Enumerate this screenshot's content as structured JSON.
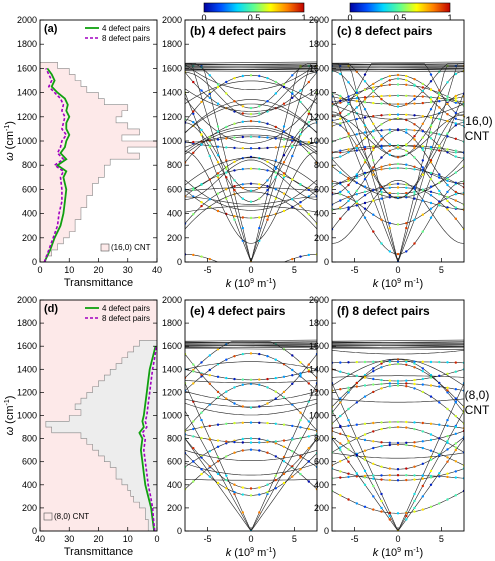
{
  "colorbar": {
    "tick_labels": [
      "0",
      "0.5",
      "1"
    ],
    "stops": [
      "#0000a0",
      "#0050ff",
      "#00d8ff",
      "#60ff90",
      "#ffff00",
      "#ff8000",
      "#c00000"
    ]
  },
  "colors": {
    "series_4": "#10a010",
    "series_8": "#a000c0",
    "fill_top": "#fde9e9",
    "fill_bottom_left": "#ededed",
    "fill_bottom_right": "#fde9e9"
  },
  "side_labels": {
    "top": [
      "(16,0)",
      "CNT"
    ],
    "bottom": [
      "(8,0)",
      "CNT"
    ]
  },
  "chart_data": [
    {
      "id": "a",
      "type": "line",
      "panel_label": "(a)",
      "xlabel": "Transmittance",
      "ylabel_main": "ω",
      "ylabel_unit": "(cm",
      "ylabel_sup": "-1",
      "ylabel_tail": ")",
      "xlim": [
        0,
        40
      ],
      "ylim": [
        0,
        2000
      ],
      "x_ticks": [
        "0",
        "10",
        "20",
        "30",
        "40"
      ],
      "y_ticks": [
        "0",
        "200",
        "400",
        "600",
        "800",
        "1000",
        "1200",
        "1400",
        "1600",
        "1800",
        "2000"
      ],
      "legend": [
        "4 defect pairs",
        "8 defect pairs"
      ],
      "area_label": "(16,0) CNT",
      "series": [
        {
          "name": "4 defect pairs",
          "w": [
            0,
            100,
            200,
            300,
            400,
            500,
            600,
            700,
            750,
            800,
            850,
            900,
            950,
            1000,
            1050,
            1100,
            1150,
            1200,
            1250,
            1300,
            1350,
            1400,
            1450,
            1500,
            1550,
            1600
          ],
          "t": [
            1.5,
            3.5,
            5,
            7,
            8,
            8.5,
            9,
            8,
            9,
            6,
            9,
            7,
            8.5,
            9,
            10,
            9,
            9,
            10,
            9,
            9.5,
            8.5,
            6,
            4,
            5,
            4,
            2.5
          ]
        },
        {
          "name": "8 defect pairs",
          "w": [
            0,
            100,
            200,
            300,
            400,
            500,
            600,
            700,
            750,
            800,
            850,
            900,
            950,
            1000,
            1050,
            1100,
            1150,
            1200,
            1250,
            1300,
            1350,
            1400,
            1450,
            1500,
            1550,
            1600
          ],
          "t": [
            1.5,
            3,
            4.5,
            6,
            6.5,
            7.5,
            7.5,
            7,
            8,
            5,
            8,
            6,
            7,
            7.5,
            9,
            7.5,
            8,
            8.5,
            7.5,
            8,
            7,
            5,
            3,
            4,
            3,
            2
          ]
        }
      ],
      "area": {
        "w": [
          0,
          50,
          100,
          150,
          200,
          250,
          300,
          350,
          400,
          450,
          500,
          550,
          600,
          650,
          700,
          750,
          800,
          850,
          900,
          950,
          1000,
          1050,
          1100,
          1150,
          1200,
          1250,
          1300,
          1350,
          1400,
          1450,
          1500,
          1550,
          1600,
          1650
        ],
        "t": [
          2,
          4,
          6,
          8,
          10,
          12,
          12,
          14,
          14,
          16,
          16,
          18,
          18,
          20,
          22,
          22,
          24,
          34,
          30,
          40,
          28,
          34,
          30,
          26,
          28,
          30,
          22,
          20,
          16,
          14,
          12,
          10,
          6,
          0
        ]
      }
    },
    {
      "id": "d",
      "type": "line",
      "panel_label": "(d)",
      "xlabel": "Transmittance",
      "ylabel_main": "ω",
      "ylabel_unit": "(cm",
      "ylabel_sup": "-1",
      "ylabel_tail": ")",
      "xlim": [
        40,
        0
      ],
      "ylim": [
        0,
        2000
      ],
      "x_ticks": [
        "40",
        "30",
        "20",
        "10",
        "0"
      ],
      "y_ticks": [
        "0",
        "200",
        "400",
        "600",
        "800",
        "1000",
        "1200",
        "1400",
        "1600",
        "1800",
        "2000"
      ],
      "legend": [
        "4 defect pairs",
        "8 defect pairs"
      ],
      "area_label": "(8,0) CNT",
      "series": [
        {
          "name": "4 defect pairs",
          "w": [
            0,
            100,
            200,
            300,
            400,
            500,
            600,
            700,
            800,
            850,
            900,
            950,
            1000,
            1100,
            1200,
            1300,
            1400,
            1500,
            1550,
            1600
          ],
          "t": [
            1,
            1.5,
            2,
            3,
            4,
            4.5,
            5,
            5.5,
            5,
            6,
            4.5,
            5,
            4.5,
            4,
            3.5,
            3,
            2.5,
            1.5,
            1,
            0.5
          ]
        },
        {
          "name": "8 defect pairs",
          "w": [
            0,
            100,
            200,
            300,
            400,
            500,
            600,
            700,
            800,
            850,
            900,
            950,
            1000,
            1100,
            1200,
            1300,
            1400,
            1500,
            1550,
            1600
          ],
          "t": [
            0.8,
            1.2,
            1.5,
            2.2,
            3,
            3.5,
            4,
            4.5,
            4,
            5,
            3.5,
            4,
            3.5,
            3,
            2.5,
            2,
            1.5,
            0.8,
            0.5,
            0.2
          ]
        }
      ],
      "area": {
        "w": [
          0,
          100,
          200,
          250,
          300,
          350,
          400,
          450,
          500,
          550,
          600,
          650,
          700,
          750,
          800,
          850,
          900,
          950,
          1000,
          1050,
          1100,
          1150,
          1200,
          1250,
          1300,
          1350,
          1400,
          1450,
          1500,
          1550,
          1600,
          1650
        ],
        "t": [
          3,
          4,
          6,
          8,
          9,
          10,
          12,
          14,
          14,
          16,
          18,
          20,
          22,
          24,
          26,
          36,
          38,
          30,
          26,
          28,
          26,
          24,
          22,
          20,
          18,
          16,
          14,
          12,
          10,
          8,
          6,
          0
        ]
      }
    },
    {
      "id": "b",
      "type": "scatter",
      "panel_label": "(b) 4 defect pairs",
      "xlabel_main": "k",
      "xlabel_unit": "(10",
      "xlabel_sup": "9",
      "xlabel_tail": " m",
      "xlabel_sup2": "-1",
      "xlabel_end": ")",
      "xlim": [
        -7.6,
        7.6
      ],
      "ylim": [
        0,
        2000
      ],
      "x_ticks": [
        "-5",
        "0",
        "5"
      ],
      "x_tick_values": [
        -5,
        0,
        5
      ],
      "y_ticks": [
        "0",
        "200",
        "400",
        "600",
        "800",
        "1000",
        "1200",
        "1400",
        "1600",
        "1800",
        "2000"
      ],
      "num_branches": 34,
      "colored_fraction": 0.35,
      "kmax": 7.6
    },
    {
      "id": "c",
      "type": "scatter",
      "panel_label": "(c) 8 defect pairs",
      "xlabel_main": "k",
      "xlabel_unit": "(10",
      "xlabel_sup": "9",
      "xlabel_tail": " m",
      "xlabel_sup2": "-1",
      "xlabel_end": ")",
      "xlim": [
        -7.6,
        7.6
      ],
      "ylim": [
        0,
        2000
      ],
      "x_ticks": [
        "-5",
        "0",
        "5"
      ],
      "x_tick_values": [
        -5,
        0,
        5
      ],
      "y_ticks": [
        "0",
        "200",
        "400",
        "600",
        "800",
        "1000",
        "1200",
        "1400",
        "1600",
        "1800",
        "2000"
      ],
      "num_branches": 34,
      "colored_fraction": 0.6,
      "kmax": 7.6
    },
    {
      "id": "e",
      "type": "scatter",
      "panel_label": "(e) 4 defect pairs",
      "xlabel_main": "k",
      "xlabel_unit": "(10",
      "xlabel_sup": "9",
      "xlabel_tail": " m",
      "xlabel_sup2": "-1",
      "xlabel_end": ")",
      "xlim": [
        -7.6,
        7.6
      ],
      "ylim": [
        0,
        2000
      ],
      "x_ticks": [
        "-5",
        "0",
        "5"
      ],
      "x_tick_values": [
        -5,
        0,
        5
      ],
      "y_ticks": [
        "0",
        "200",
        "400",
        "600",
        "800",
        "1000",
        "1200",
        "1400",
        "1600",
        "1800",
        "2000"
      ],
      "num_branches": 22,
      "colored_fraction": 0.6,
      "kmax": 15.2
    },
    {
      "id": "f",
      "type": "scatter",
      "panel_label": "(f) 8 defect pairs",
      "xlabel_main": "k",
      "xlabel_unit": "(10",
      "xlabel_sup": "9",
      "xlabel_tail": " m",
      "xlabel_sup2": "-1",
      "xlabel_end": ")",
      "xlim": [
        -7.6,
        7.6
      ],
      "ylim": [
        0,
        2000
      ],
      "x_ticks": [
        "-5",
        "0",
        "5"
      ],
      "x_tick_values": [
        -5,
        0,
        5
      ],
      "y_ticks": [
        "0",
        "200",
        "400",
        "600",
        "800",
        "1000",
        "1200",
        "1400",
        "1600",
        "1800",
        "2000"
      ],
      "num_branches": 22,
      "colored_fraction": 0.75,
      "kmax": 15.2
    }
  ]
}
